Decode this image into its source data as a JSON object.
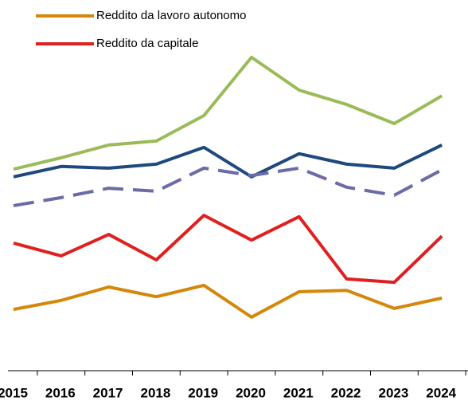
{
  "chart_data": {
    "type": "line",
    "categories": [
      "2015",
      "2016",
      "2017",
      "2018",
      "2019",
      "2020",
      "2021",
      "2022",
      "2023",
      "2024"
    ],
    "ylim": [
      0,
      100
    ],
    "series": [
      {
        "color": "#9bbb59",
        "values": [
          60.2,
          63.6,
          67.4,
          68.6,
          76.2,
          93.6,
          83.8,
          79.5,
          73.8,
          82.1
        ]
      },
      {
        "color": "#1f497d",
        "values": [
          57.9,
          61.0,
          60.5,
          61.7,
          66.7,
          57.9,
          64.8,
          61.7,
          60.5,
          67.4
        ]
      },
      {
        "color": "#6b6ba8",
        "dashed": true,
        "values": [
          49.3,
          51.7,
          54.5,
          53.6,
          60.5,
          58.3,
          60.5,
          54.8,
          52.4,
          60.0
        ]
      },
      {
        "name": "Reddito da capitale",
        "color": "#e02020",
        "values": [
          38.1,
          34.3,
          40.7,
          33.1,
          46.4,
          39.0,
          46.0,
          27.4,
          26.4,
          40.2
        ]
      },
      {
        "name": "Reddito da lavoro autonomo",
        "color": "#d4870a",
        "values": [
          18.3,
          21.0,
          25.0,
          22.1,
          25.5,
          16.0,
          23.6,
          24.0,
          18.6,
          21.7
        ]
      }
    ]
  }
}
